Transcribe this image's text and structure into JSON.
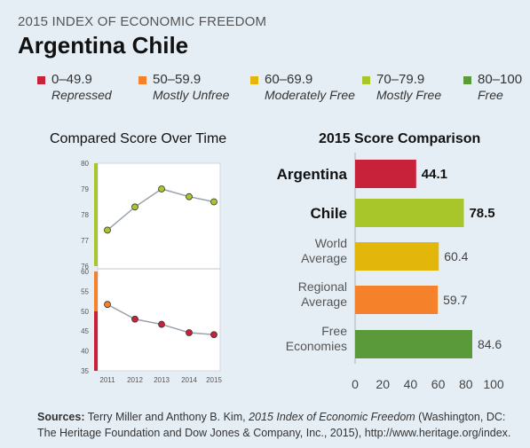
{
  "header": {
    "title": "2015 INDEX OF ECONOMIC FREEDOM",
    "countries": "Argentina  Chile"
  },
  "legend": [
    {
      "range": "0–49.9",
      "label": "Repressed",
      "color": "#c8213a"
    },
    {
      "range": "50–59.9",
      "label": "Mostly Unfree",
      "color": "#f5822a"
    },
    {
      "range": "60–69.9",
      "label": "Moderately Free",
      "color": "#e3b60c"
    },
    {
      "range": "70–79.9",
      "label": "Mostly Free",
      "color": "#a8c62a"
    },
    {
      "range": "80–100",
      "label": "Free",
      "color": "#5a9a3a"
    }
  ],
  "panels": {
    "left_title": "Compared Score Over Time",
    "right_title": "2015 Score Comparison"
  },
  "chart_data": [
    {
      "type": "line",
      "title": "Compared Score Over Time",
      "x": [
        "2011",
        "2012",
        "2013",
        "2014",
        "2015"
      ],
      "panels": [
        {
          "ylim": [
            76,
            80
          ],
          "yticks": [
            "76",
            "77",
            "78",
            "79",
            "80"
          ],
          "band_color": "#a8c62a",
          "series": [
            {
              "values": [
                77.4,
                78.3,
                79.0,
                78.7,
                78.5
              ],
              "color": "#a8c62a"
            }
          ]
        },
        {
          "ylim": [
            35,
            60
          ],
          "yticks": [
            "35",
            "40",
            "45",
            "50",
            "55",
            "60"
          ],
          "bands": [
            {
              "from": 50,
              "to": 60,
              "color": "#f5822a"
            },
            {
              "from": 35,
              "to": 50,
              "color": "#c8213a"
            }
          ],
          "series": [
            {
              "values": [
                51.7,
                48.0,
                46.7,
                44.6,
                44.1
              ],
              "colors": [
                "#f5822a",
                "#c8213a",
                "#c8213a",
                "#c8213a",
                "#c8213a"
              ]
            }
          ]
        }
      ]
    },
    {
      "type": "bar",
      "title": "2015 Score Comparison",
      "categories": [
        "Argentina",
        "Chile",
        "World\nAverage",
        "Regional\nAverage",
        "Free\nEconomies"
      ],
      "values": [
        44.1,
        78.5,
        60.4,
        59.7,
        84.6
      ],
      "value_labels": [
        "44.1",
        "78.5",
        "60.4",
        "59.7",
        "84.6"
      ],
      "colors": [
        "#c8213a",
        "#a8c62a",
        "#e3b60c",
        "#f5822a",
        "#5a9a3a"
      ],
      "emphasis": [
        true,
        true,
        false,
        false,
        false
      ],
      "xlim": [
        0,
        100
      ],
      "xticks": [
        "0",
        "20",
        "40",
        "60",
        "80",
        "100"
      ]
    }
  ],
  "source": {
    "prefix": "Sources:",
    "text1": " Terry Miller and Anthony B. Kim, ",
    "book": "2015 Index of Economic Freedom",
    "text2": " (Washington, DC:",
    "line2": "The Heritage Foundation and Dow Jones & Company, Inc., 2015), http://www.heritage.org/index."
  }
}
